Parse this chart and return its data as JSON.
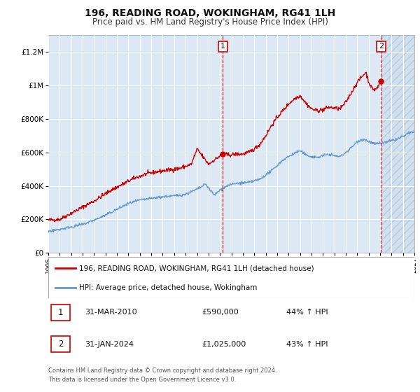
{
  "title": "196, READING ROAD, WOKINGHAM, RG41 1LH",
  "subtitle": "Price paid vs. HM Land Registry's House Price Index (HPI)",
  "red_label": "196, READING ROAD, WOKINGHAM, RG41 1LH (detached house)",
  "blue_label": "HPI: Average price, detached house, Wokingham",
  "annotation1_date": "31-MAR-2010",
  "annotation1_price": "£590,000",
  "annotation1_hpi": "44% ↑ HPI",
  "annotation1_year": 2010.25,
  "annotation1_value": 590000,
  "annotation2_date": "31-JAN-2024",
  "annotation2_price": "£1,025,000",
  "annotation2_hpi": "43% ↑ HPI",
  "annotation2_year": 2024.08,
  "annotation2_value": 1025000,
  "footer1": "Contains HM Land Registry data © Crown copyright and database right 2024.",
  "footer2": "This data is licensed under the Open Government Licence v3.0.",
  "xmin": 1995,
  "xmax": 2027,
  "ymin": 0,
  "ymax": 1300000,
  "yticks": [
    0,
    200000,
    400000,
    600000,
    800000,
    1000000,
    1200000
  ],
  "ytick_labels": [
    "£0",
    "£200K",
    "£400K",
    "£600K",
    "£800K",
    "£1M",
    "£1.2M"
  ],
  "background_color": "#dce9f5",
  "red_color": "#cc0000",
  "blue_color": "#6699cc",
  "grid_color": "#ffffff",
  "hatch_region_color": "#c8d8e8",
  "legend_border_color": "#aaaaaa",
  "anno_border_color": "#cc0000",
  "spine_color": "#999999",
  "title_fontsize": 10,
  "subtitle_fontsize": 8.5,
  "ytick_fontsize": 7.5,
  "xtick_fontsize": 6.5,
  "legend_fontsize": 7.5,
  "anno_fontsize": 8,
  "footer_fontsize": 6
}
